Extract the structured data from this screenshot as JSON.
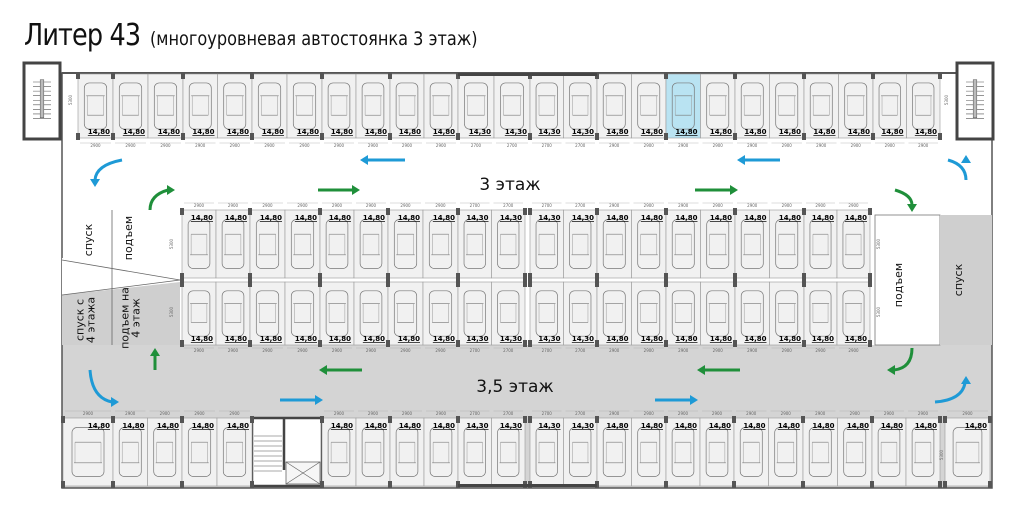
{
  "title": {
    "main": "Литер 43",
    "subtitle": "(многоуровневая автостоянка 3 этаж)"
  },
  "colors": {
    "selected_space": "#b9e3f2",
    "blue_arrow": "#1e9ad6",
    "green_arrow": "#1f8f3a",
    "ramp_gray": "#cfcfcf",
    "aisle_gray": "#d4d4d4",
    "space_fill": "#f1f1f1"
  },
  "depth_label": "5300",
  "floor_labels": {
    "upper": "3 этаж",
    "lower": "3,5 этаж"
  },
  "ramps": {
    "left_down": "спуск",
    "left_up": "подъем",
    "left_down_from_4_line1": "спуск с",
    "left_down_from_4_line2": "4 этажа",
    "left_up_to_4_line1": "подъем на",
    "left_up_to_4_line2": "4 этаж",
    "right_up": "подъем",
    "right_down": "спуск"
  },
  "rows": {
    "top": [
      [
        {
          "p": "14,80",
          "d": "2900"
        }
      ],
      [
        {
          "p": "14,80",
          "d": "2900"
        },
        {
          "p": "14,80",
          "d": "2900"
        }
      ],
      [
        {
          "p": "14,80",
          "d": "2900"
        },
        {
          "p": "14,80",
          "d": "2900"
        }
      ],
      [
        {
          "p": "14,80",
          "d": "2900"
        },
        {
          "p": "14,80",
          "d": "2900"
        }
      ],
      [
        {
          "p": "14,80",
          "d": "2900"
        },
        {
          "p": "14,80",
          "d": "2900"
        }
      ],
      [
        {
          "p": "14,80",
          "d": "2900"
        },
        {
          "p": "14,80",
          "d": "2900"
        }
      ],
      [
        {
          "p": "14,30",
          "d": "2700"
        },
        {
          "p": "14,30",
          "d": "2700"
        }
      ],
      [
        {
          "p": "14,30",
          "d": "2700"
        },
        {
          "p": "14,30",
          "d": "2700"
        }
      ],
      [
        {
          "p": "14,80",
          "d": "2900"
        },
        {
          "p": "14,80",
          "d": "2900"
        }
      ],
      [
        {
          "p": "14,80",
          "d": "2900",
          "selected": true
        },
        {
          "p": "14,80",
          "d": "2900"
        }
      ],
      [
        {
          "p": "14,80",
          "d": "2900"
        },
        {
          "p": "14,80",
          "d": "2900"
        }
      ],
      [
        {
          "p": "14,80",
          "d": "2900"
        },
        {
          "p": "14,80",
          "d": "2900"
        }
      ],
      [
        {
          "p": "14,80",
          "d": "2900"
        },
        {
          "p": "14,80",
          "d": "2900"
        }
      ]
    ],
    "middle_upper": [
      [
        {
          "p": "14,80",
          "d": "2900"
        },
        {
          "p": "14,80",
          "d": "2900"
        }
      ],
      [
        {
          "p": "14,80",
          "d": "2900"
        },
        {
          "p": "14,80",
          "d": "2900"
        }
      ],
      [
        {
          "p": "14,80",
          "d": "2900"
        },
        {
          "p": "14,80",
          "d": "2900"
        }
      ],
      [
        {
          "p": "14,80",
          "d": "2900"
        },
        {
          "p": "14,80",
          "d": "2900"
        }
      ],
      [
        {
          "p": "14,30",
          "d": "2700"
        },
        {
          "p": "14,30",
          "d": "2700"
        }
      ],
      [
        {
          "p": "14,30",
          "d": "2700"
        },
        {
          "p": "14,30",
          "d": "2700"
        }
      ],
      [
        {
          "p": "14,80",
          "d": "2900"
        },
        {
          "p": "14,80",
          "d": "2900"
        }
      ],
      [
        {
          "p": "14,80",
          "d": "2900"
        },
        {
          "p": "14,80",
          "d": "2900"
        }
      ],
      [
        {
          "p": "14,80",
          "d": "2900"
        },
        {
          "p": "14,80",
          "d": "2900"
        }
      ],
      [
        {
          "p": "14,80",
          "d": "2900"
        },
        {
          "p": "14,80",
          "d": "2900"
        }
      ]
    ],
    "middle_lower": [
      [
        {
          "p": "14,80",
          "d": "2900"
        },
        {
          "p": "14,80",
          "d": "2900"
        }
      ],
      [
        {
          "p": "14,80",
          "d": "2900"
        },
        {
          "p": "14,80",
          "d": "2900"
        }
      ],
      [
        {
          "p": "14,80",
          "d": "2900"
        },
        {
          "p": "14,80",
          "d": "2900"
        }
      ],
      [
        {
          "p": "14,80",
          "d": "2900"
        },
        {
          "p": "14,80",
          "d": "2900"
        }
      ],
      [
        {
          "p": "14,30",
          "d": "2700"
        },
        {
          "p": "14,30",
          "d": "2700"
        }
      ],
      [
        {
          "p": "14,30",
          "d": "2700"
        },
        {
          "p": "14,30",
          "d": "2700"
        }
      ],
      [
        {
          "p": "14,80",
          "d": "2900"
        },
        {
          "p": "14,80",
          "d": "2900"
        }
      ],
      [
        {
          "p": "14,80",
          "d": "2900"
        },
        {
          "p": "14,80",
          "d": "2900"
        }
      ],
      [
        {
          "p": "14,80",
          "d": "2900"
        },
        {
          "p": "14,80",
          "d": "2900"
        }
      ],
      [
        {
          "p": "14,80",
          "d": "2900"
        },
        {
          "p": "14,80",
          "d": "2900"
        }
      ]
    ],
    "bottom": [
      [
        {
          "p": "14,80",
          "d": "2900"
        }
      ],
      [
        {
          "p": "14,80",
          "d": "2900"
        },
        {
          "p": "14,80",
          "d": "2900"
        }
      ],
      [
        {
          "p": "14,80",
          "d": "2900"
        },
        {
          "p": "14,80",
          "d": "2900"
        }
      ],
      [
        {
          "p": "14,80",
          "d": "2900"
        },
        {
          "p": "14,80",
          "d": "2900"
        }
      ],
      [
        {
          "p": "14,80",
          "d": "2900"
        },
        {
          "p": "14,80",
          "d": "2900"
        }
      ],
      [
        {
          "p": "14,30",
          "d": "2700"
        },
        {
          "p": "14,30",
          "d": "2700"
        }
      ],
      [
        {
          "p": "14,30",
          "d": "2700"
        },
        {
          "p": "14,30",
          "d": "2700"
        }
      ],
      [
        {
          "p": "14,80",
          "d": "2900"
        },
        {
          "p": "14,80",
          "d": "2900"
        }
      ],
      [
        {
          "p": "14,80",
          "d": "2900"
        },
        {
          "p": "14,80",
          "d": "2900"
        }
      ],
      [
        {
          "p": "14,80",
          "d": "2900"
        },
        {
          "p": "14,80",
          "d": "2900"
        }
      ],
      [
        {
          "p": "14,80",
          "d": "2900"
        },
        {
          "p": "14,80",
          "d": "2900"
        }
      ],
      [
        {
          "p": "14,80",
          "d": "2900"
        },
        {
          "p": "14,80",
          "d": "2900"
        }
      ],
      [
        {
          "p": "14,80",
          "d": "2900"
        }
      ]
    ]
  },
  "arrows": [
    {
      "color": "blue",
      "dir": "left"
    },
    {
      "color": "blue",
      "dir": "left"
    },
    {
      "color": "blue",
      "dir": "curve-down-left"
    },
    {
      "color": "blue",
      "dir": "curve-up-right"
    },
    {
      "color": "green",
      "dir": "right"
    },
    {
      "color": "green",
      "dir": "right"
    },
    {
      "color": "green",
      "dir": "curve-up-left"
    },
    {
      "color": "green",
      "dir": "curve-down-right"
    },
    {
      "color": "green",
      "dir": "up"
    },
    {
      "color": "green",
      "dir": "left"
    },
    {
      "color": "green",
      "dir": "left"
    },
    {
      "color": "green",
      "dir": "curve-left-up"
    },
    {
      "color": "blue",
      "dir": "curve-down-right"
    },
    {
      "color": "blue",
      "dir": "right"
    },
    {
      "color": "blue",
      "dir": "right"
    },
    {
      "color": "blue",
      "dir": "curve-right-up"
    }
  ]
}
